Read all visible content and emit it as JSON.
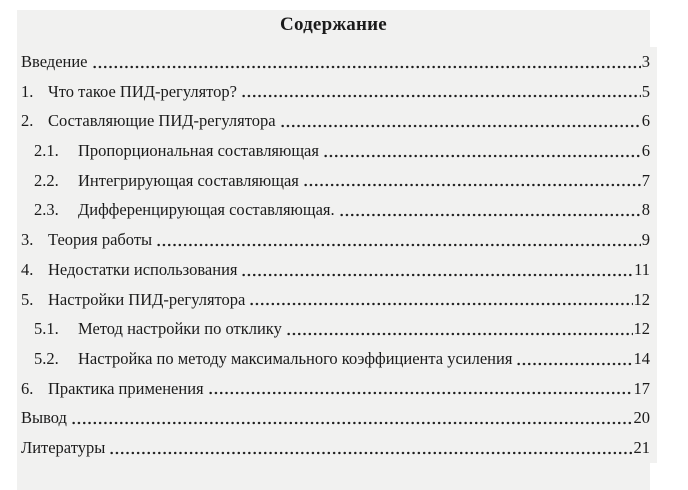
{
  "document": {
    "title": "Содержание",
    "field_shading_color": "#f1f1f0",
    "text_color": "#1b1b1b",
    "toc": [
      {
        "number": "",
        "label": "Введение",
        "page": "3",
        "level": 0
      },
      {
        "number": "1.",
        "label": "Что такое ПИД-регулятор?",
        "page": "5",
        "level": 1
      },
      {
        "number": "2.",
        "label": "Составляющие ПИД-регулятора",
        "page": "6",
        "level": 1
      },
      {
        "number": "2.1.",
        "label": "Пропорциональная составляющая",
        "page": "6",
        "level": 2
      },
      {
        "number": "2.2.",
        "label": "Интегрирующая составляющая",
        "page": "7",
        "level": 2
      },
      {
        "number": "2.3.",
        "label": "Дифференцирующая составляющая.",
        "page": "8",
        "level": 2
      },
      {
        "number": "3.",
        "label": "Теория работы",
        "page": "9",
        "level": 1
      },
      {
        "number": "4.",
        "label": "Недостатки использования",
        "page": "11",
        "level": 1
      },
      {
        "number": "5.",
        "label": "Настройки ПИД-регулятора",
        "page": "12",
        "level": 1
      },
      {
        "number": "5.1.",
        "label": "Метод настройки по отклику",
        "page": "12",
        "level": 2
      },
      {
        "number": "5.2.",
        "label": "Настройка по методу максимального коэффициента усиления",
        "page": "14",
        "level": 2
      },
      {
        "number": "6.",
        "label": "Практика применения",
        "page": "17",
        "level": 1
      },
      {
        "number": "",
        "label": "Вывод",
        "page": "20",
        "level": 0
      },
      {
        "number": "",
        "label": "Литературы",
        "page": "21",
        "level": 0
      }
    ]
  }
}
